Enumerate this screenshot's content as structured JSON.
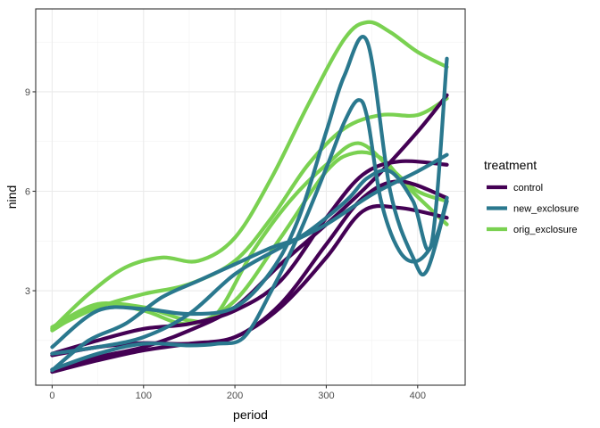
{
  "chart_data": {
    "type": "line",
    "xlabel": "period",
    "ylabel": "nind",
    "xlim": [
      -18,
      452
    ],
    "ylim": [
      0.15,
      11.5
    ],
    "x_ticks": [
      0,
      100,
      200,
      300,
      400
    ],
    "y_ticks": [
      3,
      6,
      9
    ],
    "x_minor": [
      50,
      150,
      250,
      350
    ],
    "y_minor": [
      1.5,
      4.5,
      7.5,
      10.5
    ],
    "grid": true,
    "legend": {
      "title": "treatment",
      "position": "right",
      "entries": [
        {
          "label": "control",
          "color": "#440154"
        },
        {
          "label": "new_exclosure",
          "color": "#2a788e"
        },
        {
          "label": "orig_exclosure",
          "color": "#7ad151"
        }
      ]
    },
    "series": [
      {
        "treatment": "control",
        "x": [
          0,
          50,
          100,
          150,
          200,
          250,
          300,
          340,
          380,
          432
        ],
        "y": [
          0.55,
          0.9,
          1.2,
          1.4,
          1.6,
          2.5,
          4.0,
          5.4,
          5.5,
          5.2
        ]
      },
      {
        "treatment": "control",
        "x": [
          0,
          50,
          100,
          150,
          200,
          250,
          300,
          340,
          380,
          432
        ],
        "y": [
          1.05,
          1.3,
          1.42,
          1.4,
          1.6,
          2.6,
          4.4,
          5.8,
          6.3,
          5.8
        ]
      },
      {
        "treatment": "control",
        "x": [
          0,
          50,
          100,
          150,
          200,
          250,
          300,
          340,
          380,
          432
        ],
        "y": [
          1.1,
          1.5,
          1.85,
          2.0,
          2.4,
          3.3,
          5.2,
          6.5,
          6.9,
          6.8
        ]
      },
      {
        "treatment": "control",
        "x": [
          0,
          50,
          100,
          150,
          200,
          250,
          300,
          350,
          400,
          432
        ],
        "y": [
          0.62,
          1.0,
          1.3,
          1.8,
          2.5,
          3.8,
          5.0,
          6.3,
          7.8,
          8.9
        ]
      },
      {
        "treatment": "new_exclosure",
        "x": [
          0,
          50,
          100,
          150,
          200,
          250,
          300,
          350,
          400,
          432
        ],
        "y": [
          1.1,
          1.3,
          1.6,
          2.3,
          3.5,
          4.3,
          5.0,
          5.9,
          6.6,
          7.1
        ]
      },
      {
        "treatment": "new_exclosure",
        "x": [
          0,
          40,
          80,
          120,
          160,
          200,
          240,
          270,
          300,
          325,
          345,
          370,
          395,
          415,
          432
        ],
        "y": [
          0.6,
          1.5,
          2.0,
          2.8,
          3.3,
          3.8,
          4.3,
          4.6,
          5.2,
          5.8,
          6.4,
          6.6,
          5.7,
          4.4,
          10.0
        ]
      },
      {
        "treatment": "new_exclosure",
        "x": [
          0,
          50,
          100,
          150,
          200,
          240,
          270,
          300,
          320,
          345,
          370,
          395,
          410,
          432
        ],
        "y": [
          1.3,
          2.4,
          2.45,
          2.3,
          2.5,
          3.6,
          5.2,
          7.8,
          9.5,
          10.5,
          6.0,
          4.0,
          3.6,
          5.7
        ]
      },
      {
        "treatment": "new_exclosure",
        "x": [
          0,
          50,
          100,
          150,
          180,
          210,
          240,
          270,
          300,
          320,
          335,
          345,
          360,
          380,
          400,
          420,
          432
        ],
        "y": [
          0.62,
          1.1,
          1.4,
          1.35,
          1.4,
          1.6,
          3.0,
          4.7,
          6.7,
          8.1,
          8.75,
          8.2,
          5.7,
          4.2,
          3.9,
          4.6,
          5.8
        ]
      },
      {
        "treatment": "orig_exclosure",
        "x": [
          0,
          40,
          80,
          120,
          160,
          200,
          240,
          280,
          320,
          345,
          370,
          400,
          432
        ],
        "y": [
          1.85,
          2.9,
          3.7,
          4.0,
          3.9,
          4.6,
          6.4,
          8.6,
          10.6,
          11.1,
          10.8,
          10.2,
          9.75
        ]
      },
      {
        "treatment": "orig_exclosure",
        "x": [
          0,
          50,
          100,
          150,
          200,
          240,
          280,
          320,
          360,
          400,
          432
        ],
        "y": [
          1.85,
          2.5,
          2.9,
          3.2,
          3.9,
          5.2,
          6.8,
          7.9,
          8.3,
          8.3,
          8.8
        ]
      },
      {
        "treatment": "orig_exclosure",
        "x": [
          0,
          50,
          100,
          150,
          180,
          220,
          260,
          300,
          335,
          370,
          400,
          432
        ],
        "y": [
          1.8,
          2.55,
          2.5,
          2.1,
          2.3,
          4.2,
          5.7,
          6.8,
          7.45,
          6.7,
          6.0,
          5.7
        ]
      },
      {
        "treatment": "orig_exclosure",
        "x": [
          0,
          50,
          100,
          150,
          200,
          250,
          300,
          330,
          360,
          390,
          432
        ],
        "y": [
          1.9,
          2.6,
          2.4,
          2.0,
          2.7,
          4.6,
          6.6,
          7.15,
          7.0,
          6.1,
          5.0
        ]
      }
    ]
  }
}
